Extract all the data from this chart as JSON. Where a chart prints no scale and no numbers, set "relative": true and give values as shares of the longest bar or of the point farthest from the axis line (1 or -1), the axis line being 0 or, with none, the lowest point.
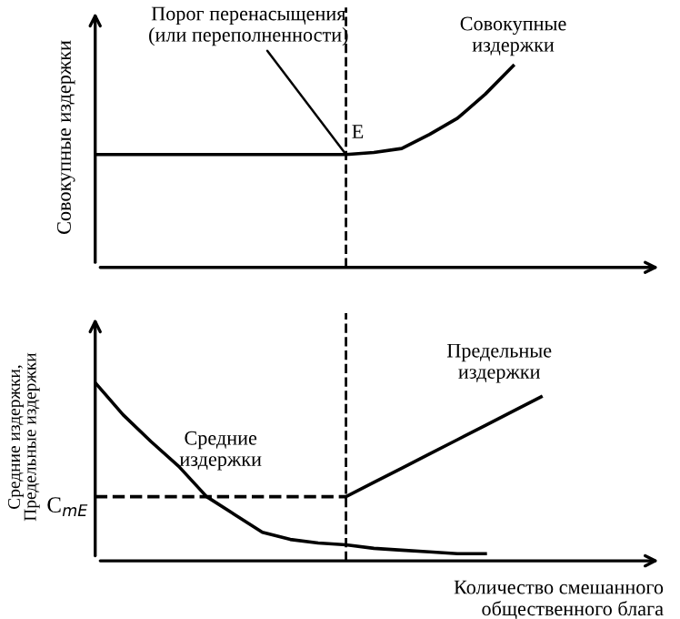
{
  "chart_data": [
    {
      "type": "line",
      "relative": true,
      "ylabel": "Совокупные издержки",
      "categories": [
        null,
        null,
        null,
        null,
        null,
        null,
        null,
        null,
        null,
        null,
        null,
        null,
        null,
        null,
        null,
        null,
        null,
        null,
        null,
        null,
        null
      ],
      "series": [
        {
          "name": "Совокупные\nиздержки",
          "color": "#000000",
          "values": [
            0.56,
            0.56,
            0.56,
            0.56,
            0.56,
            0.56,
            0.56,
            0.56,
            0.56,
            0.56,
            0.57,
            0.59,
            0.66,
            0.74,
            0.86,
            1.0,
            null,
            null,
            null,
            null,
            null
          ]
        }
      ],
      "annotations": [
        "Порог перенасыщения\n(или переполненности)",
        "E"
      ],
      "grid": false,
      "legend": false,
      "marker": "none",
      "line_style": "solid"
    },
    {
      "type": "line",
      "relative": true,
      "ylabel": "Средние издержки,\nПредельные издержки",
      "xlabel": "Количество смешанного\nобщественного блага",
      "categories": [
        null,
        null,
        null,
        null,
        null,
        null,
        null,
        null,
        null,
        null,
        null,
        null,
        null,
        null,
        null,
        null,
        null,
        null,
        null,
        null,
        null
      ],
      "series": [
        {
          "name": "Средние\nиздержки",
          "color": "#000000",
          "values": [
            1.0,
            0.82,
            0.67,
            0.53,
            0.36,
            0.26,
            0.16,
            0.12,
            0.1,
            0.09,
            0.07,
            0.06,
            0.05,
            0.04,
            0.04,
            null,
            null,
            null,
            null,
            null,
            null
          ]
        },
        {
          "name": "Предельные\nиздержки",
          "color": "#000000",
          "values": [
            null,
            null,
            null,
            null,
            null,
            null,
            null,
            null,
            null,
            0.36,
            0.44,
            0.52,
            0.6,
            0.68,
            0.76,
            0.84,
            0.92,
            null,
            null,
            null,
            null
          ]
        },
        {
          "color": "#000000",
          "line_style": "dashed",
          "values": [
            0.36,
            0.36,
            0.36,
            0.36,
            0.36,
            0.36,
            0.36,
            0.36,
            0.36,
            0.36,
            null,
            null,
            null,
            null,
            null,
            null,
            null,
            null,
            null,
            null,
            null
          ]
        }
      ],
      "annotations": [
        "C$_{mE}$"
      ],
      "grid": false,
      "legend": false,
      "marker": "none",
      "line_style": "solid"
    }
  ]
}
